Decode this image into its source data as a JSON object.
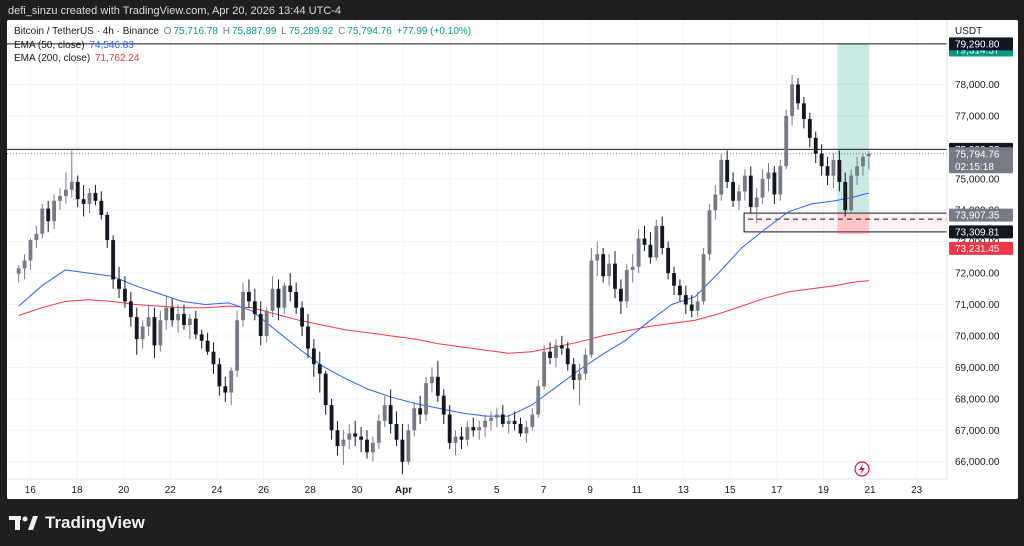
{
  "header": {
    "credit": "defi_sinzu created with TradingView.com, Apr 20, 2026 13:44 UTC-4"
  },
  "legend": {
    "symbol": "Bitcoin / TetherUS · 4h · Binance",
    "o_label": "O",
    "o_value": "75,716.78",
    "h_label": "H",
    "h_value": "75,887.99",
    "l_label": "L",
    "l_value": "75,289.92",
    "c_label": "C",
    "c_value": "75,794.76",
    "change": "+77.99 (+0.10%)",
    "ema50_label": "EMA (50, close)",
    "ema50_value": "74,546.83",
    "ema200_label": "EMA (200, close)",
    "ema200_value": "71,762.24"
  },
  "brand": {
    "name": "TradingView"
  },
  "colors": {
    "up": "#787b86",
    "down": "#131722",
    "ema50": "#2962ff",
    "ema200": "#f23645",
    "target": "#089981",
    "stop": "#f23645",
    "grid": "#f0f3fa",
    "text": "#131722"
  },
  "chart_data": {
    "type": "candlestick",
    "title": "",
    "currency": "USDT",
    "y_ticks": [
      66000,
      67000,
      68000,
      69000,
      70000,
      71000,
      72000,
      73000,
      74000,
      75000,
      76000,
      77000,
      78000
    ],
    "y_tick_labels": [
      "66,000.00",
      "67,000.00",
      "68,000.00",
      "69,000.00",
      "70,000.00",
      "71,000.00",
      "72,000.00",
      "73,000.00",
      "74,000.00",
      "75,000.00",
      "76,000.00",
      "77,000.00",
      "78,000.00"
    ],
    "ylim": [
      65450,
      80050
    ],
    "xlim": [
      15.5,
      24.1
    ],
    "x_ticks": [
      {
        "label": "16",
        "t": 16
      },
      {
        "label": "18",
        "t": 18
      },
      {
        "label": "20",
        "t": 20
      },
      {
        "label": "22",
        "t": 22
      },
      {
        "label": "24",
        "t": 24
      },
      {
        "label": "26",
        "t": 26
      },
      {
        "label": "28",
        "t": 28
      },
      {
        "label": "30",
        "t": 30
      },
      {
        "label": "Apr",
        "t": 32
      },
      {
        "label": "3",
        "t": 34
      },
      {
        "label": "5",
        "t": 36
      },
      {
        "label": "7",
        "t": 38
      },
      {
        "label": "9",
        "t": 40
      },
      {
        "label": "11",
        "t": 42
      },
      {
        "label": "13",
        "t": 44
      },
      {
        "label": "15",
        "t": 46
      },
      {
        "label": "17",
        "t": 48
      },
      {
        "label": "19",
        "t": 50
      },
      {
        "label": "21",
        "t": 52
      },
      {
        "label": "23",
        "t": 54
      }
    ],
    "x_domain": [
      15.0,
      55.3
    ],
    "price_labels": [
      {
        "label": "79,314.57",
        "value": 79314.57,
        "color": "#089981",
        "role": "target"
      },
      {
        "label": "79,290.80",
        "value": 79290.8,
        "color": "#131722",
        "role": "line"
      },
      {
        "label": "75,933.83",
        "value": 75933.83,
        "color": "#131722",
        "role": "line"
      },
      {
        "label": "75,794.76",
        "value": 75794.76,
        "color": "#787b86",
        "role": "last",
        "countdown": "02:15:18"
      },
      {
        "label": "73,907.35",
        "value": 73907.35,
        "color": "#787b86",
        "role": "entry"
      },
      {
        "label": "73,309.81",
        "value": 73309.81,
        "color": "#131722",
        "role": "line"
      },
      {
        "label": "73,231.45",
        "value": 73231.45,
        "color": "#f23645",
        "role": "stop"
      }
    ],
    "horizontal_lines": [
      79290.8,
      75933.83
    ],
    "support_zone": {
      "from_t": 46.6,
      "to_t": 55.3,
      "low": 73309.81,
      "high": 73907.35
    },
    "position": {
      "from_t": 50.6,
      "to_t": 51.95,
      "target": 79314.57,
      "entry": 73907.35,
      "stop": 73231.45
    },
    "candles_4h_start": 15.5,
    "candles_per_day": 6,
    "ohlc": [
      [
        71980,
        72250,
        71700,
        72150
      ],
      [
        72150,
        72600,
        71800,
        72400
      ],
      [
        72400,
        73100,
        72100,
        73050
      ],
      [
        73050,
        73500,
        72800,
        73250
      ],
      [
        73250,
        74200,
        73100,
        74050
      ],
      [
        74050,
        74300,
        73300,
        73650
      ],
      [
        73650,
        74500,
        73400,
        74300
      ],
      [
        74300,
        74700,
        74000,
        74450
      ],
      [
        74450,
        75200,
        74200,
        74650
      ],
      [
        74650,
        75900,
        74400,
        74900
      ],
      [
        74900,
        75100,
        74100,
        74350
      ],
      [
        74350,
        74800,
        73800,
        74200
      ],
      [
        74200,
        74700,
        73900,
        74550
      ],
      [
        74550,
        74800,
        74150,
        74300
      ],
      [
        74300,
        74600,
        73700,
        73850
      ],
      [
        73850,
        73950,
        72800,
        73050
      ],
      [
        73050,
        73200,
        71500,
        71800
      ],
      [
        71800,
        72200,
        71200,
        71500
      ],
      [
        71500,
        71900,
        70900,
        71100
      ],
      [
        71100,
        71400,
        70300,
        70600
      ],
      [
        70600,
        70900,
        69400,
        69900
      ],
      [
        69900,
        70500,
        69600,
        70300
      ],
      [
        70300,
        71000,
        70000,
        70600
      ],
      [
        70600,
        70900,
        69300,
        69700
      ],
      [
        69700,
        70800,
        69500,
        70500
      ],
      [
        70500,
        71300,
        70200,
        70900
      ],
      [
        70900,
        71200,
        70300,
        70500
      ],
      [
        70500,
        71000,
        70100,
        70700
      ],
      [
        70700,
        71000,
        70200,
        70350
      ],
      [
        70350,
        70700,
        69900,
        70550
      ],
      [
        70550,
        70800,
        69900,
        70050
      ],
      [
        70050,
        70200,
        69600,
        69850
      ],
      [
        69850,
        70100,
        69400,
        69500
      ],
      [
        69500,
        69800,
        68800,
        69100
      ],
      [
        69100,
        69300,
        68100,
        68400
      ],
      [
        68400,
        68700,
        67900,
        68200
      ],
      [
        68200,
        69000,
        67800,
        68900
      ],
      [
        68900,
        70800,
        68700,
        70500
      ],
      [
        70500,
        71700,
        70300,
        71400
      ],
      [
        71400,
        71800,
        70900,
        71100
      ],
      [
        71100,
        71500,
        70500,
        70700
      ],
      [
        70700,
        71100,
        69700,
        70000
      ],
      [
        70000,
        70900,
        69800,
        70800
      ],
      [
        70800,
        71900,
        70600,
        71500
      ],
      [
        71500,
        71800,
        70500,
        70900
      ],
      [
        70900,
        71700,
        70700,
        71600
      ],
      [
        71600,
        72000,
        71100,
        71400
      ],
      [
        71400,
        71700,
        70700,
        70900
      ],
      [
        70900,
        71100,
        70000,
        70300
      ],
      [
        70300,
        70700,
        69300,
        69600
      ],
      [
        69600,
        69900,
        68700,
        69100
      ],
      [
        69100,
        69500,
        68200,
        68800
      ],
      [
        68800,
        68900,
        67500,
        67800
      ],
      [
        67800,
        68000,
        66700,
        67000
      ],
      [
        67000,
        67300,
        66200,
        66500
      ],
      [
        66500,
        67000,
        65900,
        66700
      ],
      [
        66700,
        67200,
        66400,
        66900
      ],
      [
        66900,
        67300,
        66500,
        66800
      ],
      [
        66800,
        67100,
        66300,
        66700
      ],
      [
        66700,
        67000,
        66100,
        66300
      ],
      [
        66300,
        66800,
        66000,
        66600
      ],
      [
        66600,
        67500,
        66400,
        67300
      ],
      [
        67300,
        68100,
        67100,
        67800
      ],
      [
        67800,
        68300,
        66900,
        67200
      ],
      [
        67200,
        67600,
        66500,
        66700
      ],
      [
        66700,
        67200,
        65600,
        66000
      ],
      [
        66000,
        67200,
        65900,
        67000
      ],
      [
        67000,
        67900,
        66800,
        67700
      ],
      [
        67700,
        68100,
        67200,
        67500
      ],
      [
        67500,
        68700,
        67300,
        68500
      ],
      [
        68500,
        69000,
        68200,
        68700
      ],
      [
        68700,
        69200,
        67900,
        68100
      ],
      [
        68100,
        68300,
        67200,
        67500
      ],
      [
        67500,
        67800,
        66400,
        66600
      ],
      [
        66600,
        67000,
        66200,
        66800
      ],
      [
        66800,
        67100,
        66400,
        66700
      ],
      [
        66700,
        67300,
        66500,
        67100
      ],
      [
        67100,
        67400,
        66800,
        67000
      ],
      [
        67000,
        67300,
        66700,
        67100
      ],
      [
        67100,
        67500,
        66800,
        67300
      ],
      [
        67300,
        67600,
        67000,
        67400
      ],
      [
        67400,
        67700,
        67100,
        67500
      ],
      [
        67500,
        67800,
        67100,
        67200
      ],
      [
        67200,
        67500,
        66900,
        67300
      ],
      [
        67300,
        67600,
        67000,
        67200
      ],
      [
        67200,
        67400,
        66800,
        66900
      ],
      [
        66900,
        67300,
        66600,
        67100
      ],
      [
        67100,
        67700,
        67000,
        67500
      ],
      [
        67500,
        68600,
        67400,
        68400
      ],
      [
        68400,
        69700,
        68300,
        69500
      ],
      [
        69500,
        69800,
        69100,
        69300
      ],
      [
        69300,
        69900,
        69000,
        69700
      ],
      [
        69700,
        70000,
        69400,
        69600
      ],
      [
        69600,
        69800,
        68900,
        69100
      ],
      [
        69100,
        69300,
        68300,
        68600
      ],
      [
        68600,
        69100,
        67800,
        68800
      ],
      [
        68800,
        69600,
        68600,
        69400
      ],
      [
        69400,
        72800,
        69300,
        72400
      ],
      [
        72400,
        73000,
        71900,
        72600
      ],
      [
        72600,
        72800,
        71700,
        71900
      ],
      [
        71900,
        72600,
        71600,
        72300
      ],
      [
        72300,
        72700,
        71200,
        71500
      ],
      [
        71500,
        71800,
        70700,
        71100
      ],
      [
        71100,
        72300,
        70900,
        72100
      ],
      [
        72100,
        72600,
        71700,
        72200
      ],
      [
        72200,
        73400,
        72000,
        73100
      ],
      [
        73100,
        73500,
        72700,
        72900
      ],
      [
        72900,
        73300,
        72300,
        72500
      ],
      [
        72500,
        73700,
        72400,
        73500
      ],
      [
        73500,
        73800,
        72600,
        72800
      ],
      [
        72800,
        73000,
        71800,
        72000
      ],
      [
        72000,
        72200,
        71300,
        71600
      ],
      [
        71600,
        71800,
        71100,
        71300
      ],
      [
        71300,
        71600,
        70700,
        71000
      ],
      [
        71000,
        71300,
        70600,
        70800
      ],
      [
        70800,
        71400,
        70600,
        71100
      ],
      [
        71100,
        72800,
        71000,
        72600
      ],
      [
        72600,
        74200,
        72400,
        74000
      ],
      [
        74000,
        74800,
        73700,
        74500
      ],
      [
        74500,
        75800,
        74300,
        75600
      ],
      [
        75600,
        75900,
        74700,
        74900
      ],
      [
        74900,
        75200,
        74100,
        74300
      ],
      [
        74300,
        74800,
        74000,
        74600
      ],
      [
        74600,
        75300,
        74300,
        75100
      ],
      [
        75100,
        75400,
        73900,
        74100
      ],
      [
        74100,
        74700,
        73600,
        74400
      ],
      [
        74400,
        75300,
        74200,
        75000
      ],
      [
        75000,
        75500,
        74600,
        75200
      ],
      [
        75200,
        75400,
        74200,
        74500
      ],
      [
        74500,
        75600,
        74300,
        75400
      ],
      [
        75400,
        77200,
        75300,
        77000
      ],
      [
        77000,
        78300,
        76700,
        78000
      ],
      [
        78000,
        78200,
        77200,
        77400
      ],
      [
        77400,
        77600,
        76600,
        76900
      ],
      [
        76900,
        77100,
        76000,
        76300
      ],
      [
        76300,
        76500,
        75500,
        75800
      ],
      [
        75800,
        76100,
        75100,
        75400
      ],
      [
        75400,
        75700,
        74800,
        75100
      ],
      [
        75100,
        75800,
        74700,
        75600
      ],
      [
        75600,
        75900,
        74600,
        74900
      ],
      [
        74900,
        75200,
        73800,
        74000
      ],
      [
        74000,
        75300,
        73900,
        75100
      ],
      [
        75100,
        75700,
        74800,
        75400
      ],
      [
        75400,
        75800,
        75100,
        75700
      ],
      [
        75716.78,
        75887.99,
        75289.92,
        75794.76
      ]
    ],
    "ema50": [
      [
        15.5,
        70950
      ],
      [
        16.5,
        71600
      ],
      [
        17.5,
        72100
      ],
      [
        18.5,
        72000
      ],
      [
        19.5,
        71900
      ],
      [
        20.5,
        71600
      ],
      [
        21.5,
        71350
      ],
      [
        22.5,
        71100
      ],
      [
        23.5,
        71000
      ],
      [
        24.5,
        71050
      ],
      [
        25.5,
        70800
      ],
      [
        26.5,
        70200
      ],
      [
        27.5,
        69600
      ],
      [
        28.5,
        69050
      ],
      [
        29.5,
        68650
      ],
      [
        30.5,
        68300
      ],
      [
        31.5,
        68050
      ],
      [
        32.5,
        67850
      ],
      [
        33.5,
        67700
      ],
      [
        34.5,
        67550
      ],
      [
        35.5,
        67450
      ],
      [
        36.5,
        67450
      ],
      [
        37.5,
        67800
      ],
      [
        38.5,
        68350
      ],
      [
        39.5,
        68900
      ],
      [
        40.5,
        69400
      ],
      [
        41.5,
        69850
      ],
      [
        42.5,
        70450
      ],
      [
        43.5,
        71000
      ],
      [
        44.5,
        71250
      ],
      [
        45.5,
        72000
      ],
      [
        46.5,
        72800
      ],
      [
        47.5,
        73400
      ],
      [
        48.5,
        73950
      ],
      [
        49.5,
        74200
      ],
      [
        50.5,
        74300
      ],
      [
        51.2,
        74400
      ],
      [
        51.95,
        74546.83
      ]
    ],
    "ema200": [
      [
        15.5,
        70650
      ],
      [
        16.5,
        70900
      ],
      [
        17.5,
        71100
      ],
      [
        18.5,
        71150
      ],
      [
        19.5,
        71100
      ],
      [
        20.5,
        71000
      ],
      [
        21.5,
        70950
      ],
      [
        22.5,
        70900
      ],
      [
        23.5,
        70900
      ],
      [
        24.5,
        70950
      ],
      [
        25.5,
        70900
      ],
      [
        26.5,
        70700
      ],
      [
        27.5,
        70500
      ],
      [
        28.5,
        70350
      ],
      [
        29.5,
        70200
      ],
      [
        30.5,
        70100
      ],
      [
        31.5,
        70000
      ],
      [
        32.5,
        69900
      ],
      [
        33.5,
        69750
      ],
      [
        34.5,
        69650
      ],
      [
        35.5,
        69550
      ],
      [
        36.5,
        69450
      ],
      [
        37.5,
        69500
      ],
      [
        38.5,
        69650
      ],
      [
        39.5,
        69800
      ],
      [
        40.5,
        70000
      ],
      [
        41.5,
        70150
      ],
      [
        42.5,
        70300
      ],
      [
        43.5,
        70400
      ],
      [
        44.5,
        70500
      ],
      [
        45.5,
        70700
      ],
      [
        46.5,
        70950
      ],
      [
        47.5,
        71200
      ],
      [
        48.5,
        71400
      ],
      [
        49.5,
        71500
      ],
      [
        50.5,
        71600
      ],
      [
        51.2,
        71700
      ],
      [
        51.95,
        71762.24
      ]
    ]
  }
}
